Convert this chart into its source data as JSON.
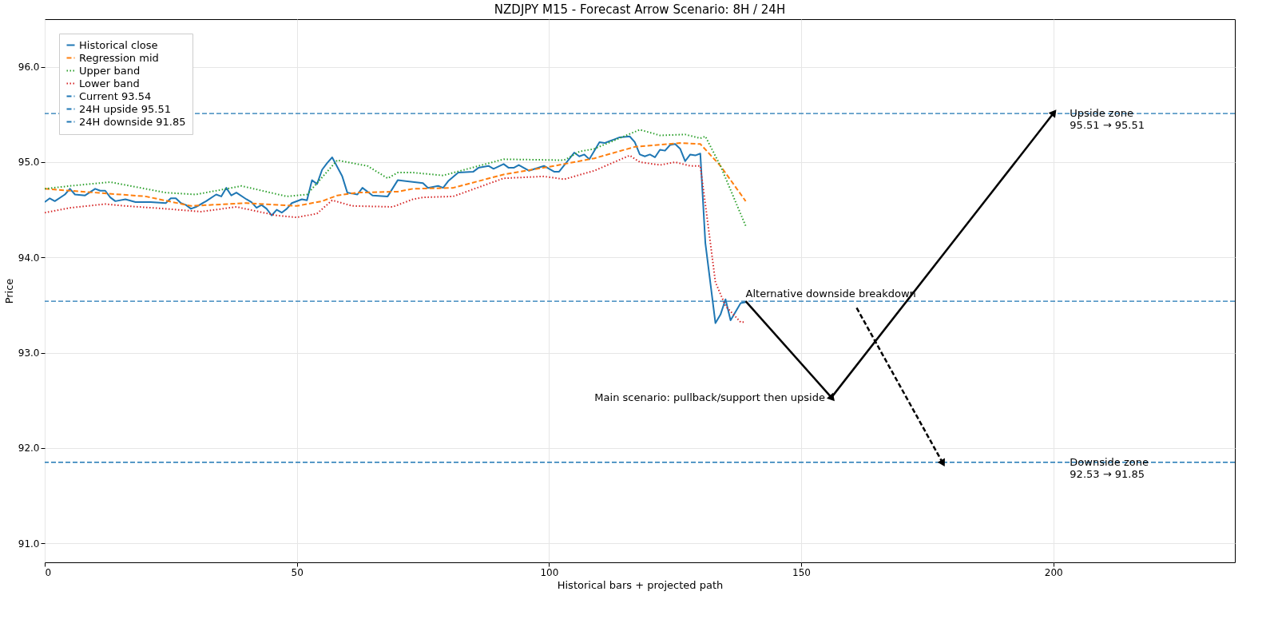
{
  "chart_data": {
    "type": "line",
    "title": "NZDJPY M15 - Forecast Arrow Scenario: 8H / 24H",
    "xlabel": "Historical bars + projected path",
    "ylabel": "Price",
    "xlim": [
      0,
      236
    ],
    "ylim": [
      90.8,
      96.5
    ],
    "xticks": [
      0,
      50,
      100,
      150,
      200
    ],
    "yticks": [
      {
        "value": 91,
        "label": "91.0"
      },
      {
        "value": 92,
        "label": "92.0"
      },
      {
        "value": 93,
        "label": "93.0"
      },
      {
        "value": 94,
        "label": "94.0"
      },
      {
        "value": 95,
        "label": "95.0"
      },
      {
        "value": 96,
        "label": "96.0"
      }
    ],
    "grid": true,
    "legend": "top left",
    "series": [
      {
        "name": "Historical close",
        "color": "#1f77b4",
        "line_style": "solid",
        "x": [
          0,
          1,
          2,
          4,
          5,
          6,
          8,
          10,
          11,
          12,
          13,
          14,
          16,
          18,
          21,
          24,
          25,
          26,
          27,
          28,
          29,
          30,
          32,
          34,
          35,
          36,
          37,
          38,
          40,
          41,
          42,
          43,
          44,
          45,
          46,
          47,
          48,
          49,
          51,
          52,
          53,
          54,
          55,
          56,
          57,
          59,
          60,
          62,
          63,
          65,
          68,
          70,
          75,
          76,
          78,
          79,
          80,
          82,
          85,
          86,
          88,
          89,
          91,
          92,
          93,
          94,
          96,
          99,
          101,
          102,
          105,
          106,
          107,
          108,
          110,
          111,
          113,
          114,
          116,
          117,
          118,
          119,
          120,
          121,
          122,
          123,
          124,
          125,
          126,
          127,
          128,
          129,
          130,
          131,
          133,
          134,
          135,
          136,
          138,
          139
        ],
        "values": [
          94.58,
          94.62,
          94.59,
          94.66,
          94.72,
          94.66,
          94.65,
          94.72,
          94.7,
          94.7,
          94.63,
          94.59,
          94.61,
          94.58,
          94.58,
          94.57,
          94.62,
          94.62,
          94.57,
          94.55,
          94.51,
          94.53,
          94.59,
          94.66,
          94.64,
          94.73,
          94.65,
          94.68,
          94.61,
          94.58,
          94.52,
          94.55,
          94.51,
          94.44,
          94.5,
          94.47,
          94.51,
          94.57,
          94.61,
          94.6,
          94.81,
          94.77,
          94.92,
          94.99,
          95.05,
          94.85,
          94.68,
          94.66,
          94.73,
          94.65,
          94.64,
          94.81,
          94.78,
          94.73,
          94.75,
          94.73,
          94.8,
          94.89,
          94.9,
          94.94,
          94.96,
          94.93,
          94.98,
          94.94,
          94.94,
          94.97,
          94.91,
          94.96,
          94.9,
          94.9,
          95.1,
          95.06,
          95.08,
          95.03,
          95.21,
          95.2,
          95.24,
          95.26,
          95.27,
          95.21,
          95.08,
          95.06,
          95.08,
          95.05,
          95.13,
          95.12,
          95.18,
          95.19,
          95.14,
          95.01,
          95.08,
          95.07,
          95.09,
          94.15,
          93.31,
          93.4,
          93.56,
          93.34,
          93.52,
          93.53
        ]
      },
      {
        "name": "Regression mid",
        "color": "#ff7f0e",
        "line_style": "dashed",
        "x": [
          0,
          10,
          20,
          29,
          40,
          50,
          55,
          58,
          62,
          70,
          73,
          81,
          91,
          101,
          109,
          117,
          126,
          130,
          134,
          139
        ],
        "values": [
          94.72,
          94.68,
          94.64,
          94.54,
          94.57,
          94.54,
          94.59,
          94.65,
          94.68,
          94.69,
          94.72,
          94.73,
          94.87,
          94.96,
          95.04,
          95.16,
          95.2,
          95.19,
          94.96,
          94.59
        ]
      },
      {
        "name": "Upper band",
        "color": "#2ca02c",
        "line_style": "dotted",
        "x": [
          0,
          5,
          13,
          24,
          30,
          39,
          48,
          52,
          55,
          58,
          64,
          68,
          70,
          73,
          79,
          91,
          103,
          106,
          109,
          118,
          122,
          127,
          130,
          131,
          134,
          139
        ],
        "values": [
          94.72,
          94.75,
          94.79,
          94.68,
          94.66,
          94.75,
          94.64,
          94.66,
          94.84,
          95.02,
          94.96,
          94.83,
          94.89,
          94.89,
          94.86,
          95.03,
          95.02,
          95.11,
          95.14,
          95.34,
          95.28,
          95.29,
          95.25,
          95.27,
          94.96,
          94.33
        ]
      },
      {
        "name": "Lower band",
        "color": "#d62728",
        "line_style": "dotted",
        "x": [
          0,
          5,
          12,
          16,
          24,
          31,
          38,
          46,
          50,
          54,
          57,
          61,
          69,
          73,
          75,
          81,
          91,
          99,
          103,
          109,
          116,
          118,
          122,
          125,
          128,
          130,
          132,
          133,
          135,
          138,
          139
        ],
        "values": [
          94.47,
          94.52,
          94.56,
          94.54,
          94.51,
          94.48,
          94.53,
          94.44,
          94.42,
          94.46,
          94.6,
          94.54,
          94.53,
          94.61,
          94.63,
          94.64,
          94.83,
          94.85,
          94.82,
          94.91,
          95.07,
          95.0,
          94.97,
          95.0,
          94.96,
          94.96,
          94.15,
          93.74,
          93.49,
          93.32,
          93.32
        ]
      },
      {
        "color": "#000000",
        "line_style": "solid",
        "x": [
          139,
          156
        ],
        "values": [
          93.54,
          92.53
        ]
      },
      {
        "color": "#000000",
        "line_style": "solid",
        "x": [
          156,
          200
        ],
        "values": [
          92.53,
          95.51
        ]
      },
      {
        "color": "#000000",
        "line_style": "dashed",
        "x": [
          161,
          178
        ],
        "values": [
          93.47,
          91.85
        ]
      }
    ],
    "ref_lines": [
      {
        "axis": "y",
        "value": 93.54,
        "label": "Current 93.54",
        "color": "#1f77b4",
        "line_style": "dashed"
      },
      {
        "axis": "y",
        "value": 95.51,
        "label": "24H upside 95.51",
        "color": "#1f77b4",
        "line_style": "dashed"
      },
      {
        "axis": "y",
        "value": 91.85,
        "label": "24H downside 91.85",
        "color": "#1f77b4",
        "line_style": "dashed"
      }
    ],
    "annotations": [
      {
        "text": "Main scenario: pullback/support then upside",
        "x": 156,
        "y": 92.53
      },
      {
        "text": "Alternative downside breakdown",
        "x": 139,
        "y": 93.54
      },
      {
        "text": "Upside zone\n95.51 → 95.51",
        "x": 202,
        "y": 95.51
      },
      {
        "text": "Downside zone\n92.53 → 91.85",
        "x": 202,
        "y": 91.85
      }
    ]
  }
}
